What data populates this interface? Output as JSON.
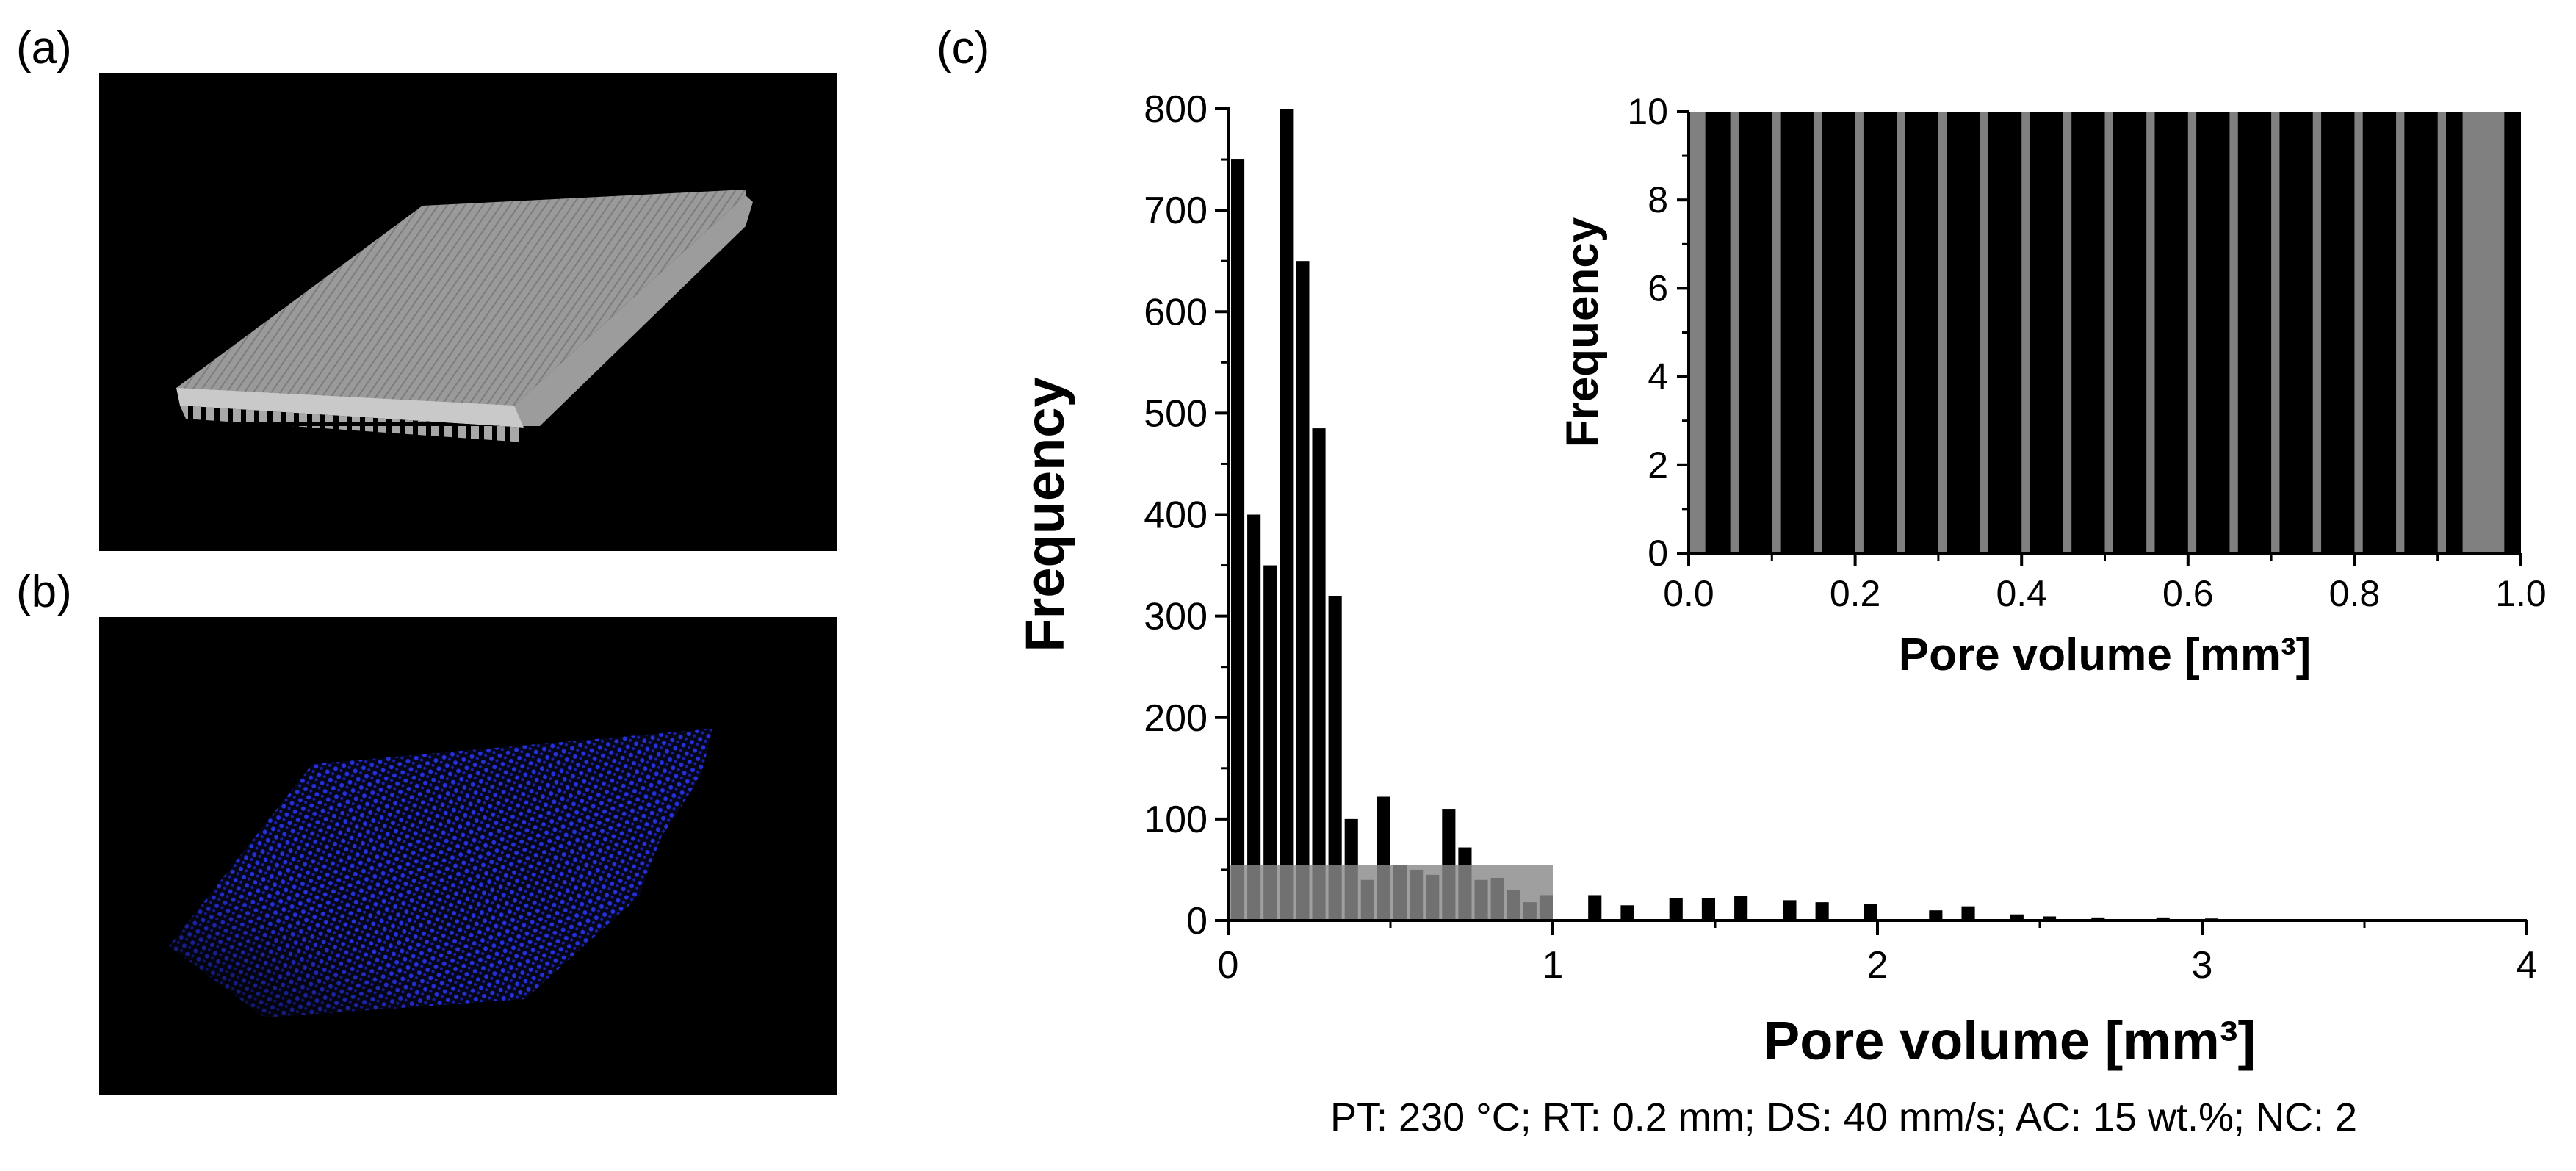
{
  "panels": {
    "a": {
      "label": "(a)",
      "description": "3D rendering of grey lattice specimen"
    },
    "b": {
      "label": "(b)",
      "description": "3D rendering of pores (blue)"
    },
    "c": {
      "label": "(c)"
    }
  },
  "colors": {
    "bar_dark": "#000000",
    "bar_grey": "#808080",
    "overlay": "#8a8a8a",
    "specimen": "#b8b8b8",
    "pores": "#2430d8",
    "background_render": "#000000"
  },
  "parameters_text": "PT: 230 °C; RT: 0.2 mm; DS: 40 mm/s; AC: 15 wt.%; NC: 2",
  "chart_data": [
    {
      "id": "main",
      "type": "bar",
      "title": "",
      "xlabel": "Pore volume [mm³]",
      "ylabel": "Frequency",
      "xlim": [
        0,
        4
      ],
      "ylim": [
        0,
        800
      ],
      "xticks": [
        0,
        1,
        2,
        3,
        4
      ],
      "yticks": [
        0,
        100,
        200,
        300,
        400,
        500,
        600,
        700,
        800
      ],
      "bin_width": 0.05,
      "bins": [
        {
          "x": 0.05,
          "y": 750
        },
        {
          "x": 0.1,
          "y": 400
        },
        {
          "x": 0.15,
          "y": 350
        },
        {
          "x": 0.2,
          "y": 800
        },
        {
          "x": 0.25,
          "y": 650
        },
        {
          "x": 0.3,
          "y": 485
        },
        {
          "x": 0.35,
          "y": 320
        },
        {
          "x": 0.4,
          "y": 100
        },
        {
          "x": 0.45,
          "y": 40
        },
        {
          "x": 0.5,
          "y": 122
        },
        {
          "x": 0.55,
          "y": 55
        },
        {
          "x": 0.6,
          "y": 50
        },
        {
          "x": 0.65,
          "y": 45
        },
        {
          "x": 0.7,
          "y": 110
        },
        {
          "x": 0.75,
          "y": 72
        },
        {
          "x": 0.8,
          "y": 40
        },
        {
          "x": 0.85,
          "y": 42
        },
        {
          "x": 0.9,
          "y": 30
        },
        {
          "x": 0.95,
          "y": 18
        },
        {
          "x": 1.0,
          "y": 25
        },
        {
          "x": 1.15,
          "y": 25
        },
        {
          "x": 1.25,
          "y": 15
        },
        {
          "x": 1.4,
          "y": 22
        },
        {
          "x": 1.5,
          "y": 22
        },
        {
          "x": 1.6,
          "y": 24
        },
        {
          "x": 1.75,
          "y": 20
        },
        {
          "x": 1.85,
          "y": 18
        },
        {
          "x": 2.0,
          "y": 16
        },
        {
          "x": 2.2,
          "y": 10
        },
        {
          "x": 2.3,
          "y": 14
        },
        {
          "x": 2.45,
          "y": 6
        },
        {
          "x": 2.55,
          "y": 4
        },
        {
          "x": 2.7,
          "y": 3
        },
        {
          "x": 2.9,
          "y": 3
        },
        {
          "x": 3.05,
          "y": 2
        },
        {
          "x": 3.2,
          "y": 1
        },
        {
          "x": 3.35,
          "y": 1
        },
        {
          "x": 3.5,
          "y": 1
        }
      ],
      "zoom_region": {
        "x": [
          0,
          1
        ],
        "y": [
          0,
          55
        ]
      }
    },
    {
      "id": "inset",
      "type": "bar",
      "title": "",
      "xlabel": "Pore volume [mm³]",
      "ylabel": "Frequency",
      "xlim": [
        0,
        1
      ],
      "ylim": [
        0,
        10
      ],
      "xticks": [
        0.0,
        0.2,
        0.4,
        0.6,
        0.8,
        1.0
      ],
      "xticklabels": [
        "0.0",
        "0.2",
        "0.4",
        "0.6",
        "0.8",
        "1.0"
      ],
      "yticks": [
        0,
        2,
        4,
        6,
        8,
        10
      ],
      "bins": [
        {
          "x0": 0.0,
          "x1": 0.02,
          "y": 10,
          "color": "grey"
        },
        {
          "x0": 0.02,
          "x1": 0.05,
          "y": 10,
          "color": "black"
        },
        {
          "x0": 0.06,
          "x1": 0.1,
          "y": 10,
          "color": "black"
        },
        {
          "x0": 0.11,
          "x1": 0.15,
          "y": 10,
          "color": "black"
        },
        {
          "x0": 0.16,
          "x1": 0.2,
          "y": 10,
          "color": "black"
        },
        {
          "x0": 0.21,
          "x1": 0.25,
          "y": 10,
          "color": "black"
        },
        {
          "x0": 0.26,
          "x1": 0.3,
          "y": 10,
          "color": "black"
        },
        {
          "x0": 0.31,
          "x1": 0.35,
          "y": 10,
          "color": "black"
        },
        {
          "x0": 0.36,
          "x1": 0.4,
          "y": 10,
          "color": "black"
        },
        {
          "x0": 0.41,
          "x1": 0.45,
          "y": 10,
          "color": "black"
        },
        {
          "x0": 0.46,
          "x1": 0.5,
          "y": 10,
          "color": "black"
        },
        {
          "x0": 0.51,
          "x1": 0.55,
          "y": 10,
          "color": "black"
        },
        {
          "x0": 0.56,
          "x1": 0.6,
          "y": 10,
          "color": "black"
        },
        {
          "x0": 0.61,
          "x1": 0.65,
          "y": 10,
          "color": "black"
        },
        {
          "x0": 0.66,
          "x1": 0.7,
          "y": 10,
          "color": "black"
        },
        {
          "x0": 0.71,
          "x1": 0.75,
          "y": 10,
          "color": "black"
        },
        {
          "x0": 0.76,
          "x1": 0.8,
          "y": 10,
          "color": "black"
        },
        {
          "x0": 0.81,
          "x1": 0.85,
          "y": 10,
          "color": "black"
        },
        {
          "x0": 0.86,
          "x1": 0.9,
          "y": 10,
          "color": "black"
        },
        {
          "x0": 0.91,
          "x1": 0.93,
          "y": 10,
          "color": "black"
        },
        {
          "x0": 0.93,
          "x1": 0.98,
          "y": 10,
          "color": "grey"
        },
        {
          "x0": 0.98,
          "x1": 1.0,
          "y": 10,
          "color": "black"
        }
      ]
    }
  ]
}
